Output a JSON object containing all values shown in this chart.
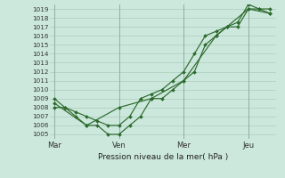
{
  "bg_color": "#cce8dc",
  "grid_color": "#aaccbb",
  "line_color": "#2d6a2d",
  "marker_color": "#2d6a2d",
  "xlabel": "Pression niveau de la mer( hPa )",
  "ylim": [
    1004.5,
    1019.5
  ],
  "yticks": [
    1005,
    1006,
    1007,
    1008,
    1009,
    1010,
    1011,
    1012,
    1013,
    1014,
    1015,
    1016,
    1017,
    1018,
    1019
  ],
  "xtick_labels": [
    "Mar",
    "Ven",
    "Mer",
    "Jeu"
  ],
  "xtick_positions": [
    0,
    3,
    6,
    9
  ],
  "xlim": [
    -0.2,
    10.3
  ],
  "series": [
    {
      "x": [
        0,
        0.5,
        1.0,
        1.5,
        2.0,
        2.5,
        3.0,
        3.5,
        4.0,
        4.5,
        5.0,
        5.5,
        6.0,
        6.5,
        7.0,
        7.5,
        8.0,
        8.5,
        9.0,
        9.5,
        10.0
      ],
      "y": [
        1009,
        1008,
        1007,
        1006,
        1006,
        1005,
        1005,
        1006,
        1007,
        1009,
        1009,
        1010,
        1011,
        1012,
        1015,
        1016,
        1017,
        1017,
        1019,
        1019,
        1019
      ]
    },
    {
      "x": [
        0,
        0.5,
        1.0,
        1.5,
        2.0,
        2.5,
        3.0,
        3.5,
        4.0,
        4.5,
        5.0,
        5.5,
        6.0,
        6.5,
        7.0,
        7.5,
        8.0,
        8.5,
        9.0,
        9.5,
        10.0
      ],
      "y": [
        1008,
        1008,
        1007.5,
        1007,
        1006.5,
        1006,
        1006,
        1007,
        1009,
        1009.5,
        1010,
        1011,
        1012,
        1014,
        1016,
        1016.5,
        1017,
        1017.5,
        1019.5,
        1019,
        1018.5
      ]
    },
    {
      "x": [
        0,
        1.5,
        3.0,
        4.5,
        6.0,
        7.5,
        9.0,
        10.0
      ],
      "y": [
        1008.5,
        1006,
        1008,
        1009,
        1011,
        1016,
        1019,
        1018.5
      ]
    }
  ]
}
